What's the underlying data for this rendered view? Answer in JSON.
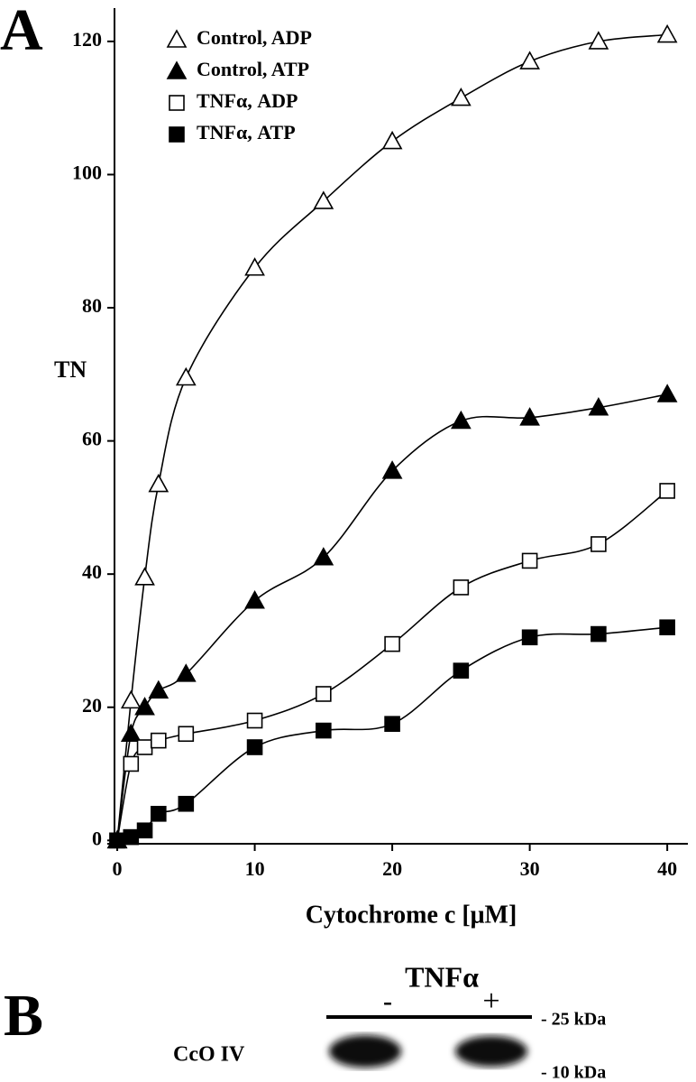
{
  "chart_data": {
    "type": "scatter",
    "x_label": "Cytochrome c [μM]",
    "y_label": "TN",
    "x": [
      0,
      1,
      2,
      3,
      5,
      10,
      15,
      20,
      25,
      30,
      35,
      40
    ],
    "series": [
      {
        "name": "Control, ADP",
        "color": "#000000",
        "marker": "triangle",
        "filled": false,
        "values": [
          0,
          21,
          39.5,
          53.5,
          69.5,
          86,
          96,
          105,
          111.5,
          117,
          120,
          121
        ]
      },
      {
        "name": "Control, ATP",
        "color": "#000000",
        "marker": "triangle",
        "filled": true,
        "values": [
          0,
          16,
          20,
          22.5,
          25,
          36,
          42.5,
          55.5,
          63,
          63.5,
          65,
          67
        ]
      },
      {
        "name": "TNFα, ADP",
        "color": "#000000",
        "marker": "square",
        "filled": false,
        "values": [
          0,
          11.5,
          14,
          15,
          16,
          18,
          22,
          29.5,
          38,
          42,
          44.5,
          52.5
        ]
      },
      {
        "name": "TNFα, ATP",
        "color": "#000000",
        "marker": "square",
        "filled": true,
        "values": [
          0,
          0.5,
          1.5,
          4,
          5.5,
          14,
          16.5,
          17.5,
          25.5,
          30.5,
          31,
          32
        ]
      }
    ],
    "xlim": [
      -0.2,
      41.5
    ],
    "ylim": [
      -0.5,
      125
    ],
    "xticks": [
      0,
      10,
      20,
      30,
      40
    ],
    "yticks": [
      0,
      20,
      40,
      60,
      80,
      100,
      120
    ],
    "legend": "upper left",
    "fit_lines": true
  },
  "panels": {
    "a": "A",
    "b": "B"
  },
  "blot": {
    "treatment": "TNFα",
    "lanes": [
      "-",
      "+"
    ],
    "protein": "CcO IV",
    "markers": [
      "- 25 kDa",
      "- 10 kDa"
    ]
  }
}
